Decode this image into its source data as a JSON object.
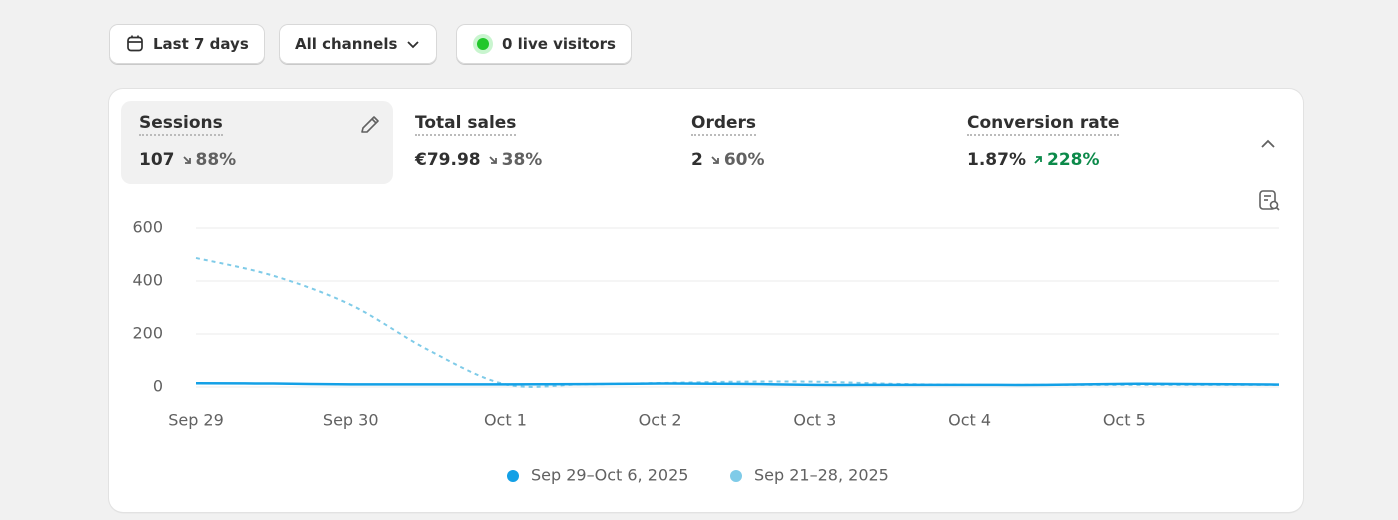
{
  "toolbar": {
    "date_range": "Last 7 days",
    "channels": "All channels",
    "live_visitors": "0 live visitors"
  },
  "metrics": [
    {
      "label": "Sessions",
      "value": "107",
      "change": "88%"
    },
    {
      "label": "Total sales",
      "value": "€79.98",
      "change": "38%"
    },
    {
      "label": "Orders",
      "value": "2",
      "change": "60%"
    },
    {
      "label": "Conversion rate",
      "value": "1.87%",
      "change": "228%"
    }
  ],
  "chart_data": {
    "type": "line",
    "categories": [
      "Sep 29",
      null,
      "Sep 30",
      null,
      "Oct 1",
      null,
      "Oct 2",
      null,
      "Oct 3",
      null,
      "Oct 4",
      null,
      "Oct 5",
      null,
      null
    ],
    "series": [
      {
        "name": "Sep 29–Oct 6, 2025",
        "color": "#13a0e6",
        "dashed": false,
        "values": [
          14,
          13,
          10,
          10,
          10,
          11,
          13,
          12,
          8,
          8,
          8,
          8,
          12,
          11,
          9
        ]
      },
      {
        "name": "Sep 21–28, 2025",
        "color": "#7fcbe8",
        "dashed": true,
        "values": [
          487,
          420,
          310,
          140,
          10,
          10,
          15,
          20,
          20,
          12,
          8,
          8,
          8,
          8,
          8
        ]
      }
    ],
    "ylim": [
      0,
      600
    ],
    "yticks": [
      0,
      200,
      400,
      600
    ],
    "grid": true
  }
}
